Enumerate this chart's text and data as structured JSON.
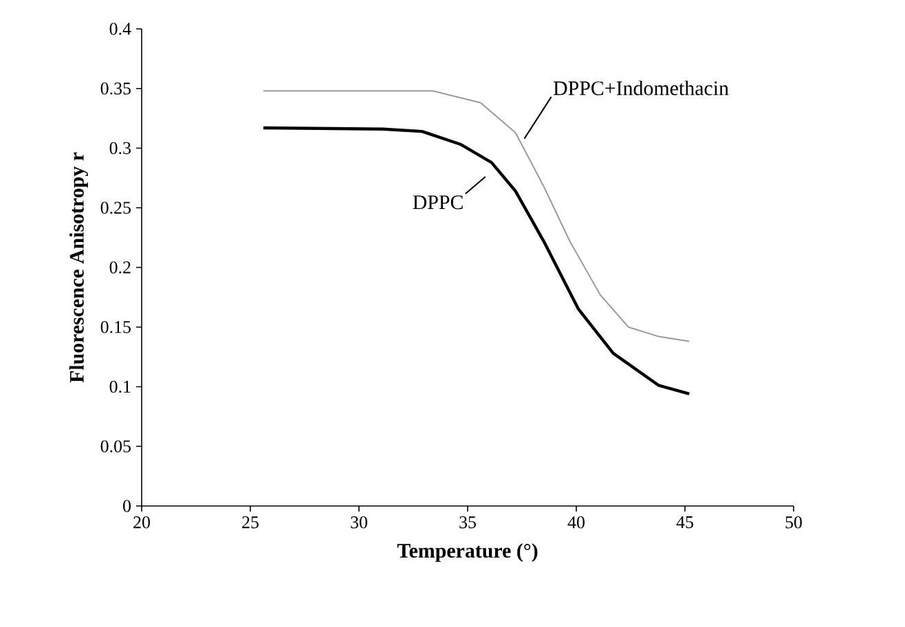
{
  "chart_data": {
    "type": "line",
    "xlabel": "Temperature (°)",
    "ylabel": "Fluorescence Anisotropy r",
    "xlim": [
      20,
      50
    ],
    "xticks": [
      20,
      25,
      30,
      35,
      40,
      45,
      50
    ],
    "ylim": [
      0,
      0.4
    ],
    "yticks": [
      0,
      0.05,
      0.1,
      0.15,
      0.2,
      0.25,
      0.3,
      0.35,
      0.4
    ],
    "grid": false,
    "marker": "none",
    "line_style": "solid",
    "series": [
      {
        "name": "DPPC+Indomethacin",
        "color": "#9a9a9a",
        "x": [
          25.6,
          29.0,
          33.4,
          35.6,
          37.2,
          38.5,
          39.7,
          41.1,
          42.4,
          43.8,
          45.2
        ],
        "values": [
          0.348,
          0.348,
          0.348,
          0.338,
          0.313,
          0.268,
          0.222,
          0.177,
          0.15,
          0.142,
          0.138
        ]
      },
      {
        "name": "DPPC",
        "color": "#000000",
        "x": [
          25.6,
          31.1,
          32.9,
          34.7,
          36.1,
          37.2,
          38.5,
          40.1,
          41.7,
          43.8,
          45.2
        ],
        "values": [
          0.317,
          0.316,
          0.314,
          0.303,
          0.288,
          0.264,
          0.222,
          0.165,
          0.128,
          0.101,
          0.094
        ]
      }
    ]
  }
}
